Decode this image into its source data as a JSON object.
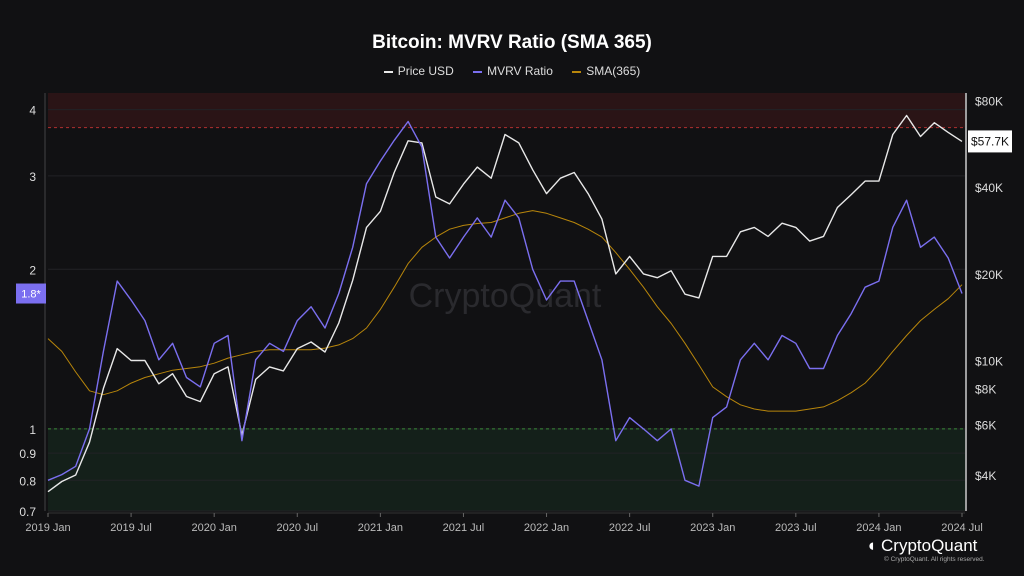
{
  "chart_data": {
    "type": "line",
    "title": "Bitcoin: MVRV Ratio (SMA 365)",
    "legend_position": "top",
    "grid": true,
    "x_ticks": [
      "2019 Jan",
      "2019 Jul",
      "2020 Jan",
      "2020 Jul",
      "2021 Jan",
      "2021 Jul",
      "2022 Jan",
      "2022 Jul",
      "2023 Jan",
      "2023 Jul",
      "2024 Jan",
      "2024 Jul"
    ],
    "x_range": [
      "2019-01",
      "2024-07"
    ],
    "left_axis": {
      "scale": "log",
      "range": [
        0.7,
        4.3
      ],
      "ticks": [
        "0.7",
        "0.8",
        "0.9",
        "1",
        "2",
        "3",
        "4"
      ],
      "current_label": "1.8*"
    },
    "right_axis": {
      "scale": "log",
      "range": [
        3000,
        85000
      ],
      "ticks": [
        {
          "v": 4000,
          "label": "$4K"
        },
        {
          "v": 6000,
          "label": "$6K"
        },
        {
          "v": 8000,
          "label": "$8K"
        },
        {
          "v": 10000,
          "label": "$10K"
        },
        {
          "v": 20000,
          "label": "$20K"
        },
        {
          "v": 40000,
          "label": "$40K"
        },
        {
          "v": 80000,
          "label": "$80K"
        }
      ],
      "current_label": "$57.7K"
    },
    "zones": {
      "overvalued_above": 3.7,
      "undervalued_below": 1,
      "overvalued_color": "#2a1416",
      "undervalued_color": "#14201a"
    },
    "months": [
      "2019-01",
      "2019-02",
      "2019-03",
      "2019-04",
      "2019-05",
      "2019-06",
      "2019-07",
      "2019-08",
      "2019-09",
      "2019-10",
      "2019-11",
      "2019-12",
      "2020-01",
      "2020-02",
      "2020-03",
      "2020-04",
      "2020-05",
      "2020-06",
      "2020-07",
      "2020-08",
      "2020-09",
      "2020-10",
      "2020-11",
      "2020-12",
      "2021-01",
      "2021-02",
      "2021-03",
      "2021-04",
      "2021-05",
      "2021-06",
      "2021-07",
      "2021-08",
      "2021-09",
      "2021-10",
      "2021-11",
      "2021-12",
      "2022-01",
      "2022-02",
      "2022-03",
      "2022-04",
      "2022-05",
      "2022-06",
      "2022-07",
      "2022-08",
      "2022-09",
      "2022-10",
      "2022-11",
      "2022-12",
      "2023-01",
      "2023-02",
      "2023-03",
      "2023-04",
      "2023-05",
      "2023-06",
      "2023-07",
      "2023-08",
      "2023-09",
      "2023-10",
      "2023-11",
      "2023-12",
      "2024-01",
      "2024-02",
      "2024-03",
      "2024-04",
      "2024-05",
      "2024-06",
      "2024-07"
    ],
    "series": [
      {
        "name": "Price USD",
        "axis": "right",
        "color": "#e8e8e8",
        "values": [
          3500,
          3800,
          4000,
          5200,
          8000,
          11000,
          10000,
          10000,
          8300,
          9000,
          7500,
          7200,
          9000,
          9500,
          5500,
          8600,
          9500,
          9200,
          11000,
          11600,
          10700,
          13500,
          19000,
          29000,
          33000,
          45000,
          58000,
          57000,
          37000,
          35000,
          41000,
          47000,
          43000,
          61000,
          57000,
          46000,
          38000,
          43000,
          45000,
          38000,
          31000,
          20000,
          23000,
          20000,
          19400,
          20500,
          17000,
          16500,
          23000,
          23000,
          28000,
          29000,
          27000,
          30000,
          29000,
          26000,
          27000,
          34000,
          37700,
          42000,
          42000,
          61000,
          71000,
          60000,
          67000,
          62000,
          57700
        ]
      },
      {
        "name": "MVRV Ratio",
        "axis": "left",
        "color": "#7b6ff0",
        "values": [
          0.8,
          0.82,
          0.85,
          1.0,
          1.4,
          1.9,
          1.75,
          1.6,
          1.35,
          1.45,
          1.25,
          1.2,
          1.45,
          1.5,
          0.95,
          1.35,
          1.45,
          1.4,
          1.6,
          1.7,
          1.55,
          1.8,
          2.2,
          2.9,
          3.2,
          3.5,
          3.8,
          3.4,
          2.3,
          2.1,
          2.3,
          2.5,
          2.3,
          2.7,
          2.5,
          2.0,
          1.75,
          1.9,
          1.9,
          1.6,
          1.35,
          0.95,
          1.05,
          1.0,
          0.95,
          1.0,
          0.8,
          0.78,
          1.05,
          1.1,
          1.35,
          1.45,
          1.35,
          1.5,
          1.45,
          1.3,
          1.3,
          1.5,
          1.65,
          1.85,
          1.9,
          2.4,
          2.7,
          2.2,
          2.3,
          2.1,
          1.8
        ]
      },
      {
        "name": "SMA(365)",
        "axis": "left",
        "color": "#b8860b",
        "values": [
          1.48,
          1.4,
          1.28,
          1.18,
          1.16,
          1.18,
          1.22,
          1.25,
          1.27,
          1.29,
          1.3,
          1.31,
          1.33,
          1.36,
          1.38,
          1.4,
          1.41,
          1.41,
          1.41,
          1.41,
          1.42,
          1.44,
          1.48,
          1.55,
          1.68,
          1.85,
          2.05,
          2.2,
          2.3,
          2.38,
          2.42,
          2.44,
          2.45,
          2.5,
          2.55,
          2.58,
          2.55,
          2.5,
          2.45,
          2.38,
          2.3,
          2.15,
          2.0,
          1.85,
          1.7,
          1.58,
          1.45,
          1.32,
          1.2,
          1.15,
          1.11,
          1.09,
          1.08,
          1.08,
          1.08,
          1.09,
          1.1,
          1.13,
          1.17,
          1.22,
          1.3,
          1.4,
          1.5,
          1.6,
          1.68,
          1.76,
          1.87
        ]
      }
    ],
    "watermark": "CryptoQuant"
  },
  "footer": {
    "logo": "CryptoQuant",
    "copyright": "© CryptoQuant. All rights reserved."
  }
}
